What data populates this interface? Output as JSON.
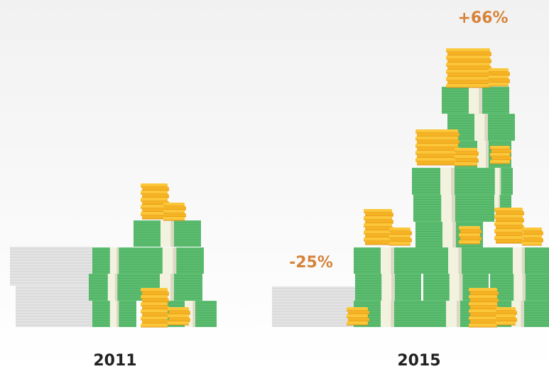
{
  "groups": [
    {
      "year": "2011"
    },
    {
      "year": "2015",
      "annotations": [
        "-25%",
        "+66%"
      ]
    }
  ]
}
